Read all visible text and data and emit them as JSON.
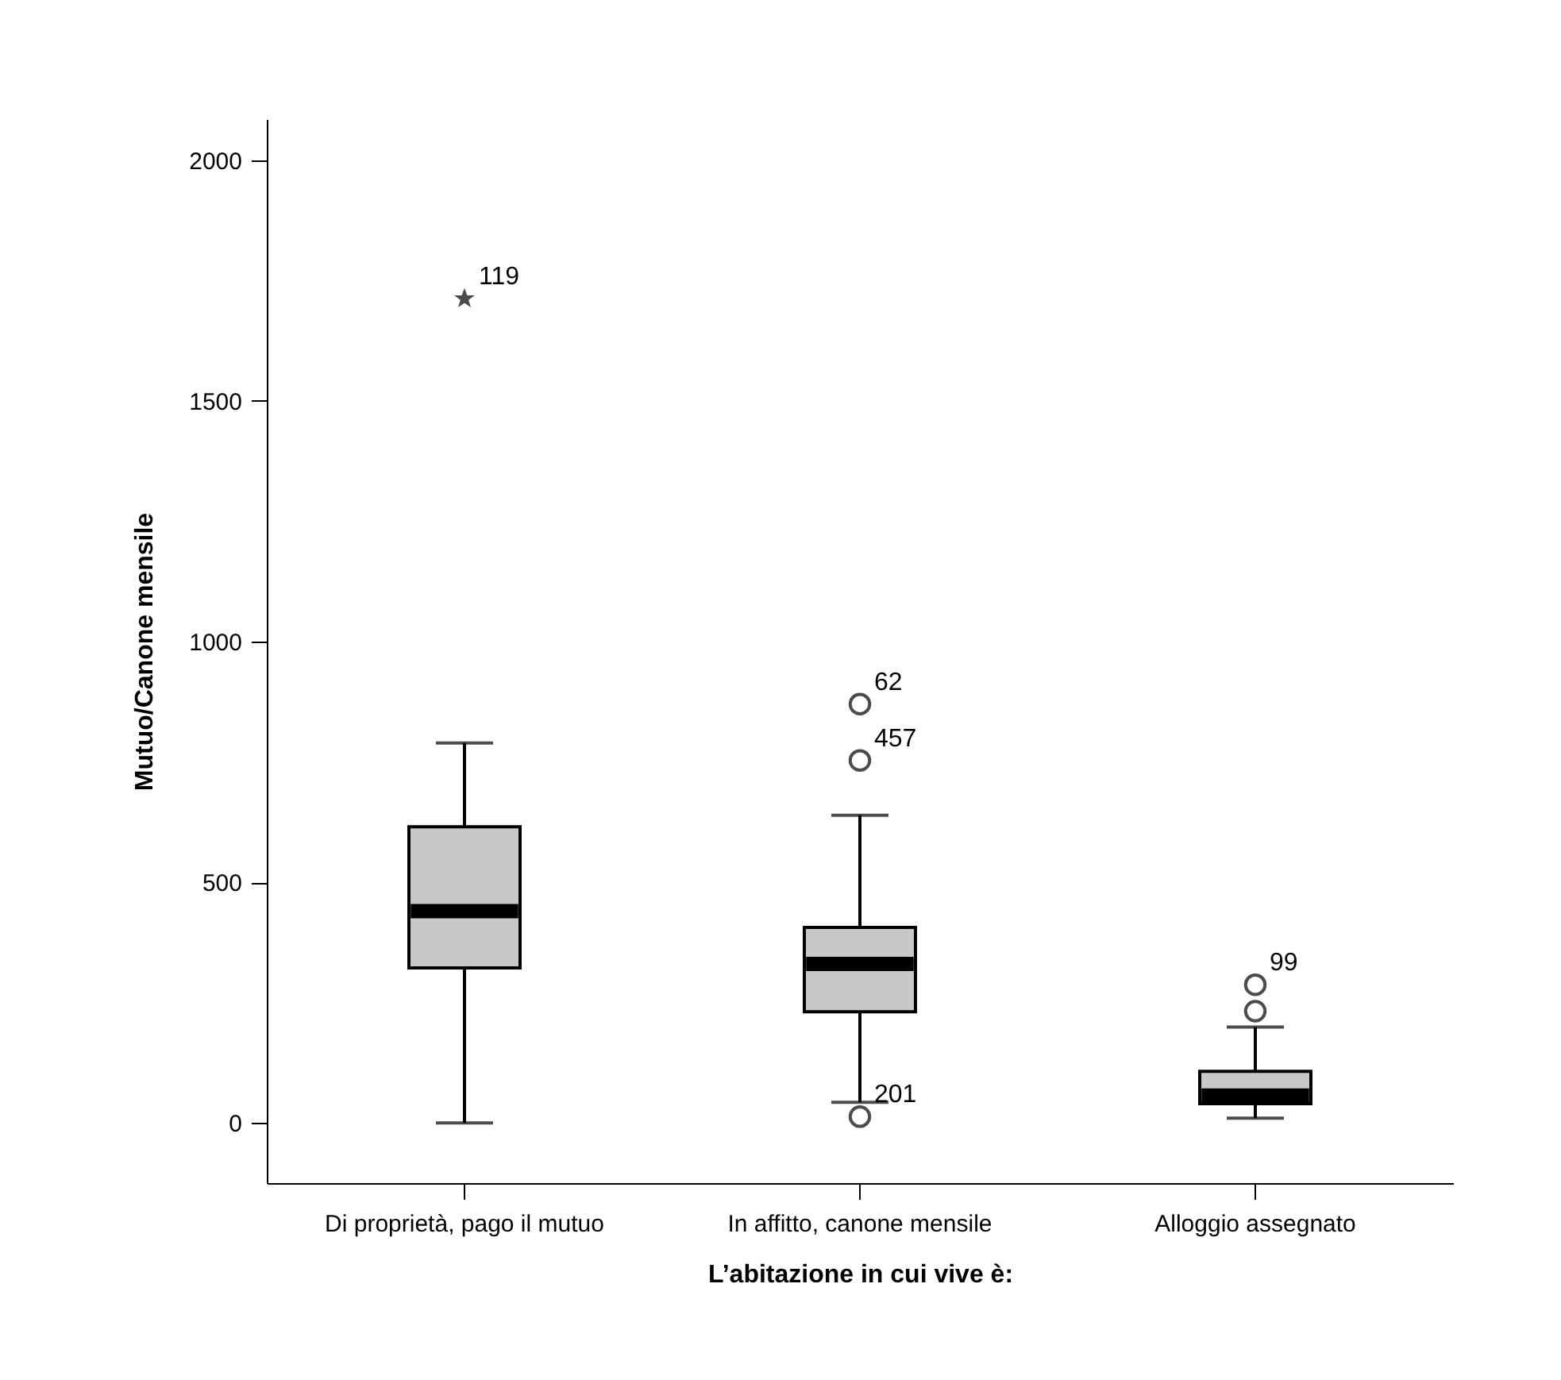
{
  "chart_data": {
    "type": "box",
    "xlabel": "L’abitazione in cui vive è:",
    "ylabel": "Mutuo/Canone mensile",
    "categories": [
      "Di proprietà, pago il mutuo",
      "In affitto, canone mensile",
      "Alloggio assegnato"
    ],
    "boxes": [
      {
        "low": 0,
        "q1": 322,
        "median": 440,
        "q3": 615,
        "high": 789
      },
      {
        "low": 43,
        "q1": 231,
        "median": 330,
        "q3": 406,
        "high": 639
      },
      {
        "low": 10,
        "q1": 40,
        "median": 57,
        "q3": 107,
        "high": 199
      }
    ],
    "series": [
      {
        "type": "scatter",
        "marker": "star",
        "x": [
          "Di proprietà, pago il mutuo"
        ],
        "values": [
          1712
        ]
      },
      {
        "type": "scatter",
        "marker": "circle",
        "x": [
          "In affitto, canone mensile",
          "In affitto, canone mensile",
          "In affitto, canone mensile",
          "Alloggio assegnato",
          "Alloggio assegnato"
        ],
        "values": [
          13,
          753,
          870,
          232,
          287
        ]
      }
    ],
    "annotations": [
      {
        "text": "119",
        "x": "Di proprietà, pago il mutuo",
        "y": 1712
      },
      {
        "text": "62",
        "x": "In affitto, canone mensile",
        "y": 870
      },
      {
        "text": "457",
        "x": "In affitto, canone mensile",
        "y": 753
      },
      {
        "text": "201",
        "x": "In affitto, canone mensile",
        "y": 13
      },
      {
        "text": "99",
        "x": "Alloggio assegnato",
        "y": 287
      }
    ],
    "ylim": [
      -125,
      2085
    ],
    "yticks": [
      0,
      500,
      1000,
      1500,
      2000
    ]
  }
}
